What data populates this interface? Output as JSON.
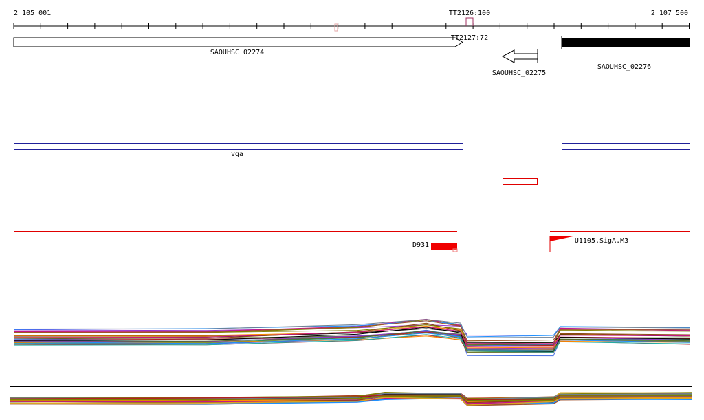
{
  "ruler": {
    "start": "2 105 001",
    "end": "2 107 500"
  },
  "terminators": [
    "TT2126:100",
    "TT2127:72"
  ],
  "genes": [
    "SAOUHSC_02274",
    "SAOUHSC_02275",
    "SAOUHSC_02276"
  ],
  "operon": "vga",
  "features": [
    "D931",
    "U1105.SigA.M3"
  ]
}
